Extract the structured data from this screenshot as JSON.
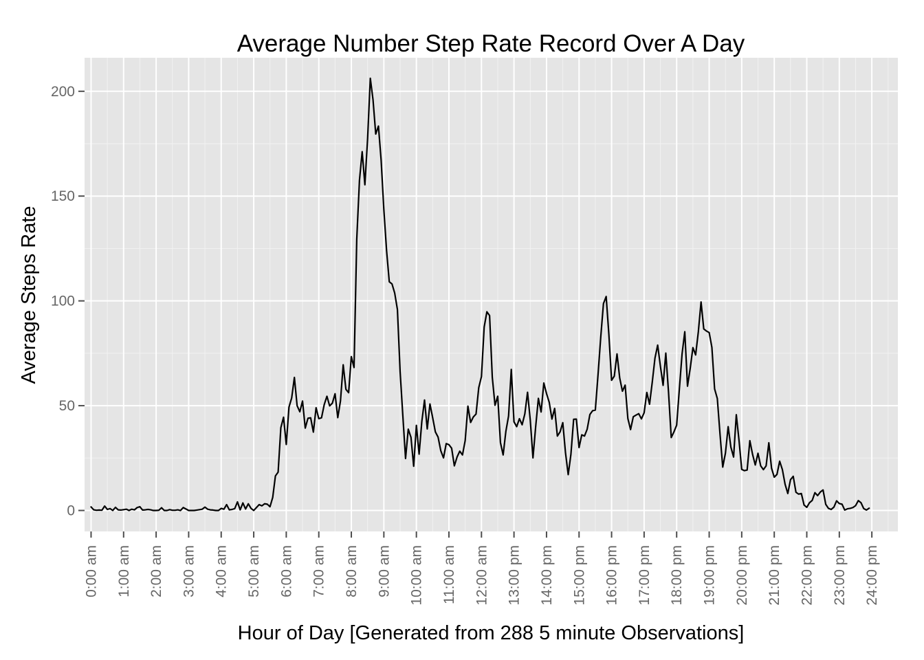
{
  "chart_data": {
    "type": "line",
    "title": "Average Number Step Rate Record Over A Day",
    "xlabel": "Hour of Day [Generated from 288 5 minute Observations]",
    "ylabel": "Average Steps Rate",
    "x_tick_labels": [
      "0:00 am",
      "1:00 am",
      "2:00 am",
      "3:00 am",
      "4:00 am",
      "5:00 am",
      "6:00 am",
      "7:00 am",
      "8:00 am",
      "9:00 am",
      "10:00 am",
      "11:00 am",
      "12:00 am",
      "13:00 pm",
      "14:00 pm",
      "15:00 pm",
      "16:00 pm",
      "17:00 pm",
      "18:00 pm",
      "19:00 pm",
      "20:00 pm",
      "21:00 pm",
      "22:00 pm",
      "23:00 pm",
      "24:00 pm"
    ],
    "y_ticks": [
      0,
      50,
      100,
      150,
      200
    ],
    "y_tick_labels": [
      "0",
      "50",
      "100",
      "150",
      "200"
    ],
    "xlim": [
      -0.2,
      24.8
    ],
    "ylim": [
      -10,
      216
    ],
    "grid": true,
    "series": [
      {
        "values": [
          1.7,
          0.3,
          0.1,
          0.2,
          0.1,
          2.1,
          0.5,
          0.9,
          0.0,
          1.5,
          0.3,
          0.2,
          0.4,
          0.6,
          0.0,
          0.6,
          0.3,
          1.4,
          1.8,
          0.2,
          0.3,
          0.5,
          0.3,
          0.0,
          0.0,
          0.1,
          1.3,
          0.0,
          0.0,
          0.4,
          0.1,
          0.1,
          0.3,
          0.0,
          1.4,
          0.7,
          0.0,
          0.0,
          0.0,
          0.2,
          0.4,
          0.6,
          1.6,
          0.6,
          0.3,
          0.2,
          0.0,
          0.0,
          1.0,
          0.6,
          2.8,
          0.3,
          0.5,
          0.9,
          4.1,
          0.3,
          3.6,
          0.7,
          3.2,
          1.0,
          0.0,
          1.4,
          2.8,
          2.2,
          3.2,
          3.0,
          1.8,
          6.2,
          16.5,
          18.3,
          39.5,
          44.5,
          31.5,
          49.3,
          53.7,
          63.5,
          50.0,
          47.1,
          52.2,
          39.3,
          44.0,
          44.2,
          37.4,
          49.0,
          43.8,
          44.2,
          50.5,
          54.5,
          49.9,
          51.2,
          55.7,
          44.3,
          52.3,
          69.5,
          57.8,
          56.2,
          73.4,
          68.2,
          129.4,
          157.5,
          171.2,
          155.4,
          177.3,
          206.2,
          196.0,
          179.6,
          183.4,
          167.0,
          143.5,
          124.0,
          109.1,
          108.1,
          103.7,
          95.9,
          66.2,
          45.2,
          24.8,
          38.8,
          34.9,
          21.1,
          40.6,
          26.9,
          42.4,
          52.7,
          38.9,
          50.8,
          44.3,
          37.5,
          35.0,
          28.5,
          25.1,
          31.9,
          31.4,
          29.7,
          21.3,
          25.5,
          28.3,
          26.5,
          33.4,
          49.8,
          42.0,
          44.6,
          46.0,
          58.6,
          63.9,
          87.5,
          94.8,
          93.0,
          63.5,
          50.2,
          54.5,
          32.4,
          26.5,
          37.7,
          45.1,
          67.3,
          42.3,
          40.0,
          43.8,
          40.9,
          46.1,
          56.4,
          43.2,
          25.1,
          40.0,
          53.5,
          47.0,
          60.8,
          55.8,
          51.6,
          43.6,
          48.7,
          35.5,
          37.5,
          41.9,
          27.5,
          17.1,
          26.8,
          43.5,
          43.6,
          30.0,
          36.1,
          35.5,
          38.8,
          45.8,
          47.6,
          47.9,
          64.8,
          82.7,
          98.7,
          102.1,
          83.9,
          62.1,
          64.1,
          74.7,
          63.2,
          56.9,
          59.8,
          43.9,
          38.6,
          44.7,
          45.5,
          46.2,
          43.7,
          46.6,
          56.3,
          50.7,
          61.2,
          72.7,
          78.9,
          68.9,
          59.7,
          75.1,
          56.5,
          34.8,
          37.5,
          40.7,
          58.0,
          74.7,
          85.3,
          59.3,
          67.8,
          77.7,
          74.2,
          85.3,
          99.5,
          86.6,
          85.6,
          84.9,
          77.8,
          58.0,
          53.4,
          36.3,
          20.7,
          27.4,
          40.0,
          30.2,
          25.5,
          45.7,
          33.5,
          19.6,
          19.0,
          19.3,
          33.3,
          26.8,
          21.7,
          27.3,
          21.3,
          19.5,
          21.3,
          32.3,
          20.2,
          15.9,
          17.2,
          23.5,
          19.5,
          12.5,
          8.1,
          14.7,
          16.3,
          8.7,
          7.8,
          8.1,
          2.6,
          1.5,
          3.7,
          4.8,
          8.5,
          7.1,
          8.8,
          9.8,
          2.9,
          1.0,
          0.5,
          1.6,
          4.6,
          3.3,
          3.0,
          0.2,
          0.8,
          1.0,
          1.4,
          2.3,
          4.7,
          3.7,
          0.9,
          0.2,
          1.1
        ]
      }
    ]
  }
}
